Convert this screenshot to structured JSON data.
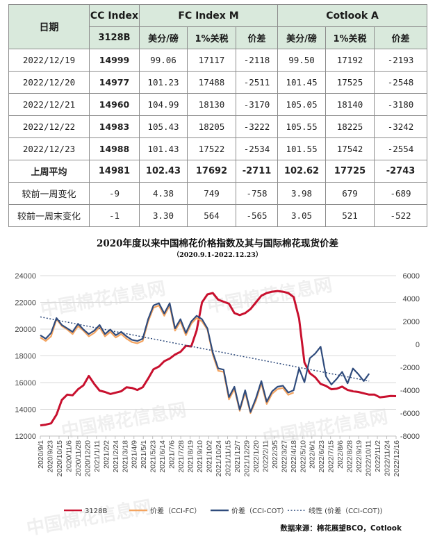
{
  "table": {
    "h_date": "日期",
    "h_cc": "CC Index",
    "h_fcm": "FC Index M",
    "h_cot": "Cotlook A",
    "sub_cc": "3128B",
    "sub_cols": [
      "美分/磅",
      "1%关税",
      "价差",
      "美分/磅",
      "1%关税",
      "价差"
    ],
    "rows": [
      [
        "2022/12/19",
        "14999",
        "99.06",
        "17117",
        "-2118",
        "99.50",
        "17192",
        "-2193"
      ],
      [
        "2022/12/20",
        "14977",
        "101.23",
        "17488",
        "-2511",
        "101.45",
        "17525",
        "-2548"
      ],
      [
        "2022/12/21",
        "14960",
        "104.99",
        "18130",
        "-3170",
        "105.05",
        "18140",
        "-3180"
      ],
      [
        "2022/12/22",
        "14983",
        "105.43",
        "18205",
        "-3222",
        "105.55",
        "18225",
        "-3242"
      ],
      [
        "2022/12/23",
        "14988",
        "101.43",
        "17522",
        "-2534",
        "101.55",
        "17542",
        "-2554"
      ]
    ],
    "avg_row": [
      "上周平均",
      "14981",
      "102.43",
      "17692",
      "-2711",
      "102.62",
      "17725",
      "-2743"
    ],
    "wk_row": [
      "较前一周变化",
      "-9",
      "4.38",
      "749",
      "-758",
      "3.98",
      "679",
      "-689"
    ],
    "wkend_row": [
      "较前一周末变化",
      "-1",
      "3.30",
      "564",
      "-565",
      "3.05",
      "521",
      "-522"
    ]
  },
  "watermark": "中国棉花信息网",
  "chart_data": {
    "type": "line",
    "title": "2020年度以来中国棉花价格指数及其与国际棉花现货价差",
    "subtitle": "（2020.9.1-2022.12.23）",
    "y_left": {
      "min": 12000,
      "max": 24000,
      "ticks": [
        "12000",
        "14000",
        "16000",
        "18000",
        "20000",
        "22000",
        "24000"
      ]
    },
    "y_right": {
      "min": -8000,
      "max": 6000,
      "ticks": [
        "-8000",
        "-6000",
        "-4000",
        "-2000",
        "0",
        "2000",
        "4000",
        "6000"
      ]
    },
    "x_labels": [
      "2020/9/1",
      "2020/9/23",
      "2020/10/15",
      "2020/11/6",
      "2020/11/28",
      "2020/12/20",
      "2021/1/11",
      "2021/2/2",
      "2021/2/24",
      "2021/3/18",
      "2021/4/9",
      "2021/5/1",
      "2021/5/23",
      "2021/6/14",
      "2021/7/6",
      "2021/7/28",
      "2021/8/19",
      "2021/9/10",
      "2021/10/2",
      "2021/10/24",
      "2021/11/15",
      "2021/12/7",
      "2021/12/29",
      "2022/1/20",
      "2022/2/11",
      "2022/3/5",
      "2022/3/27",
      "2022/4/18",
      "2022/5/10",
      "2022/6/1",
      "2022/6/23",
      "2022/7/15",
      "2022/8/6",
      "2022/8/28",
      "2022/9/19",
      "2022/10/11",
      "2022/11/2",
      "2022/11/24",
      "2022/12/16"
    ],
    "series": [
      {
        "name": "3128B",
        "axis": "left",
        "color": "#c8102e",
        "points": [
          [
            0,
            12800
          ],
          [
            1,
            12850
          ],
          [
            2,
            12950
          ],
          [
            3,
            13600
          ],
          [
            4,
            14700
          ],
          [
            5,
            15100
          ],
          [
            6,
            15050
          ],
          [
            7,
            15500
          ],
          [
            8,
            15800
          ],
          [
            9,
            16500
          ],
          [
            10,
            15900
          ],
          [
            11,
            15400
          ],
          [
            12,
            15300
          ],
          [
            13,
            15150
          ],
          [
            14,
            15250
          ],
          [
            15,
            15350
          ],
          [
            16,
            15650
          ],
          [
            17,
            15600
          ],
          [
            18,
            15450
          ],
          [
            19,
            15650
          ],
          [
            20,
            16300
          ],
          [
            21,
            17000
          ],
          [
            22,
            17200
          ],
          [
            23,
            17600
          ],
          [
            24,
            17800
          ],
          [
            25,
            18100
          ],
          [
            26,
            18300
          ],
          [
            27,
            18750
          ],
          [
            28,
            18700
          ],
          [
            29,
            19900
          ],
          [
            30,
            22000
          ],
          [
            31,
            22600
          ],
          [
            32,
            22700
          ],
          [
            33,
            22200
          ],
          [
            34,
            22050
          ],
          [
            35,
            21900
          ],
          [
            36,
            21200
          ],
          [
            37,
            21050
          ],
          [
            38,
            21200
          ],
          [
            39,
            21500
          ],
          [
            40,
            22000
          ],
          [
            41,
            22500
          ],
          [
            42,
            22700
          ],
          [
            43,
            22800
          ],
          [
            44,
            22850
          ],
          [
            45,
            22800
          ],
          [
            46,
            22700
          ],
          [
            47,
            22400
          ],
          [
            48,
            20800
          ],
          [
            49,
            17500
          ],
          [
            50,
            16700
          ],
          [
            51,
            16400
          ],
          [
            52,
            15900
          ],
          [
            53,
            15750
          ],
          [
            54,
            15500
          ],
          [
            55,
            15550
          ],
          [
            56,
            15700
          ],
          [
            57,
            15450
          ],
          [
            58,
            15350
          ],
          [
            59,
            15300
          ],
          [
            60,
            15200
          ],
          [
            61,
            15100
          ],
          [
            62,
            15100
          ],
          [
            63,
            14900
          ],
          [
            64,
            14950
          ],
          [
            65,
            14999
          ],
          [
            66,
            14988
          ]
        ]
      },
      {
        "name": "价差（CCI-FC）",
        "axis": "right",
        "color": "#f4a460",
        "points": [
          [
            0,
            600
          ],
          [
            1,
            300
          ],
          [
            2,
            700
          ],
          [
            3,
            2200
          ],
          [
            4,
            1600
          ],
          [
            5,
            1300
          ],
          [
            6,
            900
          ],
          [
            7,
            1600
          ],
          [
            8,
            1200
          ],
          [
            9,
            700
          ],
          [
            10,
            1000
          ],
          [
            11,
            1500
          ],
          [
            12,
            700
          ],
          [
            13,
            1100
          ],
          [
            14,
            600
          ],
          [
            15,
            900
          ],
          [
            16,
            500
          ],
          [
            17,
            200
          ],
          [
            18,
            100
          ],
          [
            19,
            300
          ],
          [
            20,
            2000
          ],
          [
            21,
            3200
          ],
          [
            22,
            3400
          ],
          [
            23,
            2500
          ],
          [
            24,
            3400
          ],
          [
            25,
            1200
          ],
          [
            26,
            2000
          ],
          [
            27,
            800
          ],
          [
            28,
            1800
          ],
          [
            29,
            2300
          ],
          [
            30,
            2000
          ],
          [
            31,
            1300
          ],
          [
            32,
            -900
          ],
          [
            33,
            -2300
          ],
          [
            34,
            -2400
          ],
          [
            35,
            -4800
          ],
          [
            36,
            -3900
          ],
          [
            37,
            -5800
          ],
          [
            38,
            -4200
          ],
          [
            39,
            -6000
          ],
          [
            40,
            -4900
          ],
          [
            41,
            -3400
          ],
          [
            42,
            -5200
          ],
          [
            43,
            -4300
          ],
          [
            44,
            -3900
          ],
          [
            45,
            -3800
          ],
          [
            46,
            -4400
          ],
          [
            47,
            -4200
          ]
        ]
      },
      {
        "name": "价差（CCI-COT）",
        "axis": "right",
        "color": "#2f4b7c",
        "points": [
          [
            0,
            800
          ],
          [
            1,
            500
          ],
          [
            2,
            1000
          ],
          [
            3,
            2300
          ],
          [
            4,
            1700
          ],
          [
            5,
            1400
          ],
          [
            6,
            1100
          ],
          [
            7,
            1800
          ],
          [
            8,
            1300
          ],
          [
            9,
            900
          ],
          [
            10,
            1200
          ],
          [
            11,
            1700
          ],
          [
            12,
            900
          ],
          [
            13,
            1300
          ],
          [
            14,
            800
          ],
          [
            15,
            1100
          ],
          [
            16,
            700
          ],
          [
            17,
            400
          ],
          [
            18,
            300
          ],
          [
            19,
            500
          ],
          [
            20,
            2200
          ],
          [
            21,
            3400
          ],
          [
            22,
            3600
          ],
          [
            23,
            2700
          ],
          [
            24,
            3600
          ],
          [
            25,
            1400
          ],
          [
            26,
            2200
          ],
          [
            27,
            1000
          ],
          [
            28,
            2000
          ],
          [
            29,
            2500
          ],
          [
            30,
            2200
          ],
          [
            31,
            1400
          ],
          [
            32,
            -700
          ],
          [
            33,
            -2100
          ],
          [
            34,
            -2200
          ],
          [
            35,
            -4600
          ],
          [
            36,
            -3700
          ],
          [
            37,
            -5700
          ],
          [
            38,
            -4000
          ],
          [
            39,
            -5900
          ],
          [
            40,
            -4700
          ],
          [
            41,
            -3200
          ],
          [
            42,
            -5000
          ],
          [
            43,
            -4100
          ],
          [
            44,
            -3700
          ],
          [
            45,
            -3600
          ],
          [
            46,
            -4200
          ],
          [
            47,
            -4000
          ],
          [
            48,
            -2100
          ],
          [
            49,
            -3300
          ],
          [
            50,
            -1200
          ],
          [
            51,
            -800
          ],
          [
            52,
            -200
          ],
          [
            53,
            -2800
          ],
          [
            54,
            -3500
          ],
          [
            55,
            -3000
          ],
          [
            56,
            -2400
          ],
          [
            57,
            -3400
          ],
          [
            58,
            -2100
          ],
          [
            59,
            -2600
          ],
          [
            60,
            -3200
          ],
          [
            61,
            -2554
          ]
        ]
      },
      {
        "name": "线性 (价差（CCI-COT))",
        "axis": "right",
        "color": "#2f4b7c",
        "dashed": true,
        "points": [
          [
            0,
            2400
          ],
          [
            61,
            -3200
          ]
        ]
      }
    ],
    "legend": [
      "3128B",
      "价差（CCI-FC）",
      "价差（CCI-COT）",
      "线性 (价差（CCI-COT))"
    ],
    "legend_position": "bottom",
    "source": "数据来源：棉花展望BCO，Cotlook"
  }
}
